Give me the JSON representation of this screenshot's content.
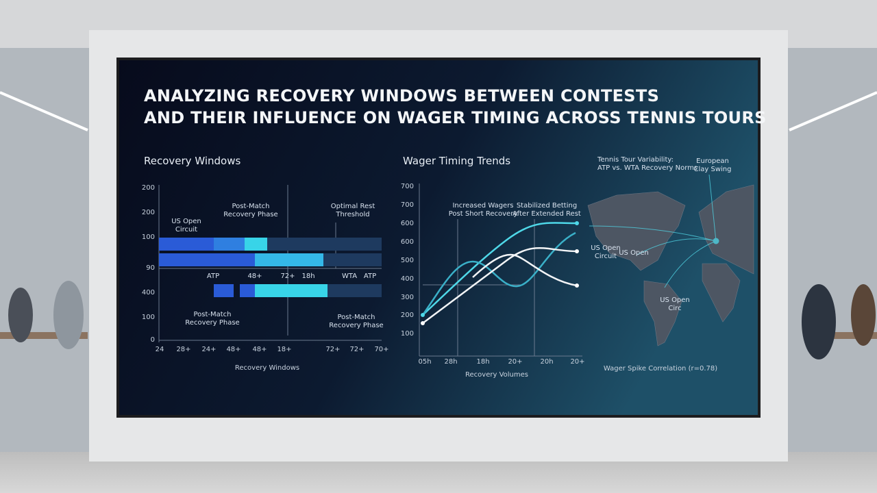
{
  "screen": {
    "title": [
      "ANALYZING RECOVERY WINDOWS BETWEEN CONTESTS",
      "AND THEIR INFLUENCE ON WAGER TIMING ACROSS TENNIS TOURS"
    ],
    "panels": [
      {
        "title": "Recovery Windows",
        "y_labels": [
          200,
          200,
          100,
          90,
          400,
          100,
          0
        ],
        "x_labels": [
          "24",
          "28+",
          "24+",
          "48+",
          "48+",
          "18+",
          "72+",
          "72+",
          "70+"
        ],
        "x_title": "Recovery Windows",
        "annotations": [
          [
            "US Open",
            "Circuit"
          ],
          [
            "Post-Match",
            "Recovery Phase"
          ],
          [
            "Optimal Rest",
            "Threshold"
          ],
          [
            "ATP"
          ],
          [
            "48+"
          ],
          [
            "72+"
          ],
          [
            "18h"
          ],
          [
            "WTA"
          ],
          [
            "ATP"
          ],
          [
            "Post-Match",
            "Recovery Phase"
          ],
          [
            "Post-Match",
            "Recovery Phase"
          ]
        ]
      },
      {
        "title": "Wager Timing Trends",
        "y_labels": [
          700,
          700,
          600,
          600,
          500,
          400,
          300,
          200,
          100
        ],
        "x_labels": [
          "05h",
          "28h",
          "18h",
          "20+",
          "20h",
          "20+"
        ],
        "x_title": "Recovery Volumes",
        "annotations": [
          [
            "Increased Wagers",
            "Post Short Recovery"
          ],
          [
            "Stabilized Betting",
            "After Extended Rest"
          ]
        ]
      },
      {
        "title": [
          "Tennis Tour Variability:",
          "ATP vs. WTA Recovery Norms"
        ],
        "annotations": [
          [
            "European",
            "Clay Swing"
          ],
          [
            "US Open",
            "Circuit"
          ],
          [
            "US Open"
          ],
          [
            "US Open",
            "Circ"
          ]
        ],
        "caption": "Wager Spike Correlation (r=0.78)"
      }
    ]
  }
}
